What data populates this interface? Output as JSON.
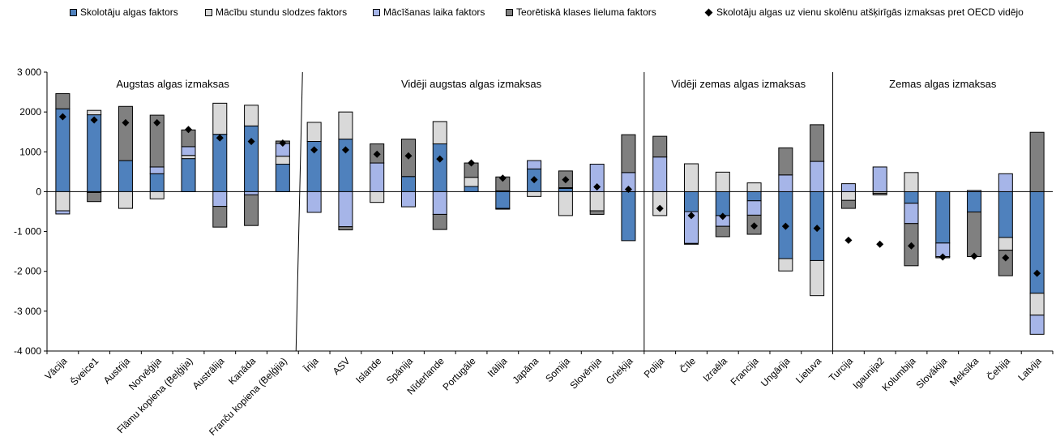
{
  "chart_data": {
    "type": "bar",
    "stacked": true,
    "ylim": [
      -4000,
      3000
    ],
    "yticks": [
      3000,
      2000,
      1000,
      0,
      -1000,
      -2000,
      -3000,
      -4000
    ],
    "ytick_labels": [
      "3 000",
      "2000",
      "1000",
      "0",
      "-1 000",
      "-2 000",
      "-3 000",
      "-4 000"
    ],
    "grid": false,
    "legend_position": "top",
    "categories": [
      "Vācija",
      "Šveice1",
      "Austrija",
      "Norvēģija",
      "Flāmu kopiena (Beļģija)",
      "Austrālija",
      "Kanāda",
      "Franču kopiena (Beļģija)",
      "Īrija",
      "ASV",
      "Islande",
      "Spānija",
      "Nīderlande",
      "Portugāle",
      "Itālija",
      "Japāna",
      "Somija",
      "Slovēnija",
      "Grieķija",
      "Polija",
      "Čīle",
      "Izraēla",
      "Francija",
      "Ungārija",
      "Lietuva",
      "Turcija",
      "Igaunija2",
      "Kolumbija",
      "Slovākija",
      "Meksika",
      "Čehija",
      "Latvija"
    ],
    "groups": [
      {
        "label": "Augstas algas izmaksas",
        "count": 8
      },
      {
        "label": "Vidēji augstas algas izmaksas",
        "count": 11
      },
      {
        "label": "Vidēji zemas algas izmaksas",
        "count": 6
      },
      {
        "label": "Zemas algas izmaksas",
        "count": 7
      }
    ],
    "series": [
      {
        "name": "Skolotāju algas faktors",
        "color": "#4f81bd",
        "kind": "bar",
        "values": [
          2080,
          1930,
          780,
          450,
          830,
          1440,
          1650,
          690,
          1260,
          1320,
          0,
          380,
          1200,
          130,
          -420,
          570,
          80,
          0,
          -1230,
          0,
          -500,
          -600,
          -230,
          -1680,
          -1730,
          0,
          0,
          -290,
          -1290,
          -510,
          -1150,
          -2550
        ]
      },
      {
        "name": "Mācību stundu slodzes faktors",
        "color": "#d9d9d9",
        "kind": "bar",
        "values": [
          -480,
          110,
          -420,
          -180,
          80,
          780,
          520,
          200,
          480,
          680,
          -270,
          0,
          560,
          230,
          20,
          -120,
          -600,
          -480,
          0,
          -600,
          700,
          490,
          220,
          -310,
          -880,
          -220,
          -40,
          480,
          0,
          0,
          -320,
          -550
        ]
      },
      {
        "name": "Mācīšanas laika faktors",
        "color": "#a6b5e8",
        "kind": "bar",
        "values": [
          -80,
          -20,
          0,
          170,
          220,
          -370,
          -80,
          320,
          -520,
          -880,
          720,
          -380,
          -570,
          0,
          -20,
          210,
          20,
          690,
          480,
          870,
          -800,
          -270,
          -360,
          420,
          760,
          200,
          620,
          -510,
          -340,
          30,
          450,
          -480
        ]
      },
      {
        "name": "Teorētiskā klases lieluma faktors",
        "color": "#808080",
        "kind": "bar",
        "values": [
          380,
          -230,
          1360,
          1300,
          420,
          -520,
          -770,
          60,
          0,
          -80,
          480,
          940,
          -380,
          360,
          350,
          0,
          420,
          -90,
          950,
          520,
          -20,
          -260,
          -480,
          680,
          920,
          -200,
          -40,
          -1060,
          -30,
          -1120,
          -640,
          1490
        ]
      },
      {
        "name": "Skolotāju algas uz vienu skolēnu atšķirīgās izmaksas pret OECD vidējo",
        "color": "#000000",
        "kind": "point",
        "values": [
          1880,
          1800,
          1730,
          1730,
          1560,
          1350,
          1260,
          1220,
          1050,
          1050,
          940,
          900,
          820,
          720,
          340,
          300,
          300,
          120,
          60,
          -420,
          -600,
          -620,
          -860,
          -870,
          -920,
          -1220,
          -1320,
          -1360,
          -1640,
          -1620,
          -1660,
          -2050
        ]
      }
    ]
  }
}
